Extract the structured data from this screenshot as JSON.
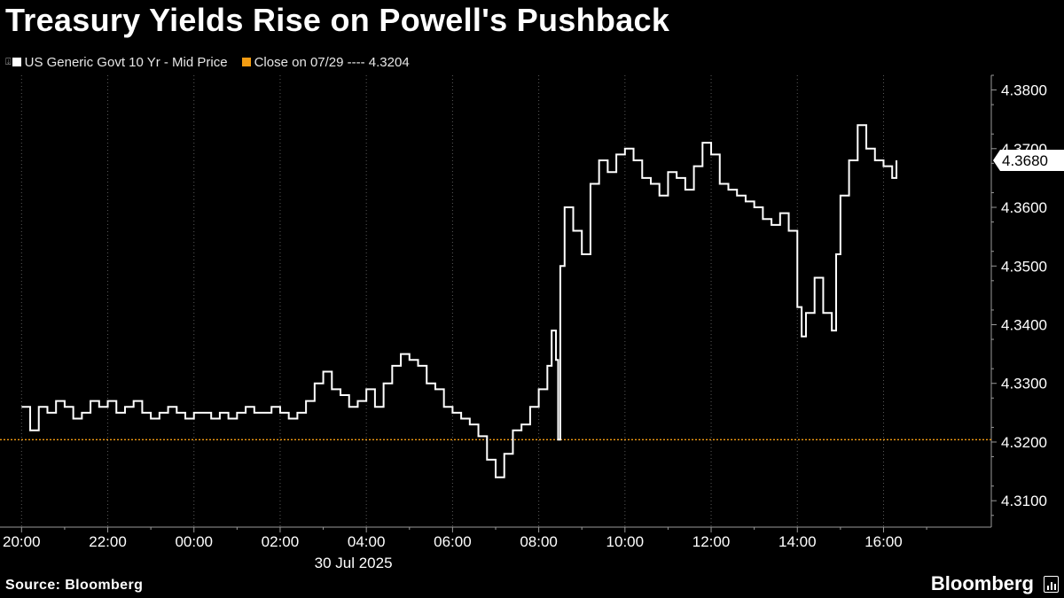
{
  "title": "Treasury Yields Rise on Powell's Pushback",
  "legend": {
    "series_label": "US Generic Govt 10 Yr - Mid Price",
    "close_label": "Close on 07/29 ---- 4.3204"
  },
  "footer": {
    "source": "Source: Bloomberg",
    "brand": "Bloomberg",
    "brand_icon": "bar-chart-icon"
  },
  "colors": {
    "background": "#000000",
    "series": "#ffffff",
    "close_line": "#f39c12",
    "axis": "#9a9a9a",
    "grid": "#5a5a5a"
  },
  "chart_data": {
    "type": "line",
    "title": "Treasury Yields Rise on Powell's Pushback",
    "xlabel": "30 Jul 2025",
    "ylabel": "",
    "x_unit": "hour relative to 00:00 on 30 Jul 2025",
    "xlim": [
      -4.5,
      18.5
    ],
    "ylim": [
      4.3055,
      4.3825
    ],
    "x_ticks": [
      -4,
      -2,
      0,
      2,
      4,
      6,
      8,
      10,
      12,
      14,
      16
    ],
    "x_tick_labels": [
      "20:00",
      "22:00",
      "00:00",
      "02:00",
      "04:00",
      "06:00",
      "08:00",
      "10:00",
      "12:00",
      "14:00",
      "16:00"
    ],
    "y_ticks": [
      4.31,
      4.32,
      4.33,
      4.34,
      4.35,
      4.36,
      4.37,
      4.38
    ],
    "y_tick_labels": [
      "4.3100",
      "4.3200",
      "4.3300",
      "4.3400",
      "4.3500",
      "4.3600",
      "4.3700",
      "4.3800"
    ],
    "grid": "vertical dotted at x ticks",
    "reference_line": {
      "name": "Close on 07/29",
      "value": 4.3204
    },
    "last_value_label": "4.3680",
    "series": [
      {
        "name": "US Generic Govt 10 Yr - Mid Price",
        "x": [
          -4.0,
          -3.8,
          -3.6,
          -3.4,
          -3.2,
          -3.0,
          -2.8,
          -2.6,
          -2.4,
          -2.2,
          -2.0,
          -1.8,
          -1.6,
          -1.4,
          -1.2,
          -1.0,
          -0.8,
          -0.6,
          -0.4,
          -0.2,
          0.0,
          0.2,
          0.4,
          0.6,
          0.8,
          1.0,
          1.2,
          1.4,
          1.6,
          1.8,
          2.0,
          2.2,
          2.4,
          2.6,
          2.8,
          3.0,
          3.2,
          3.4,
          3.6,
          3.8,
          4.0,
          4.2,
          4.4,
          4.6,
          4.8,
          5.0,
          5.2,
          5.4,
          5.6,
          5.8,
          6.0,
          6.2,
          6.4,
          6.6,
          6.8,
          7.0,
          7.2,
          7.4,
          7.6,
          7.8,
          8.0,
          8.2,
          8.3,
          8.4,
          8.45,
          8.5,
          8.6,
          8.8,
          9.0,
          9.2,
          9.4,
          9.6,
          9.8,
          10.0,
          10.2,
          10.4,
          10.6,
          10.8,
          11.0,
          11.2,
          11.4,
          11.6,
          11.8,
          12.0,
          12.2,
          12.4,
          12.6,
          12.8,
          13.0,
          13.2,
          13.4,
          13.6,
          13.8,
          14.0,
          14.1,
          14.2,
          14.4,
          14.6,
          14.8,
          14.9,
          15.0,
          15.2,
          15.4,
          15.6,
          15.8,
          16.0,
          16.2,
          16.3
        ],
        "values": [
          4.326,
          4.322,
          4.326,
          4.325,
          4.327,
          4.326,
          4.324,
          4.325,
          4.327,
          4.326,
          4.327,
          4.325,
          4.326,
          4.327,
          4.325,
          4.324,
          4.325,
          4.326,
          4.325,
          4.324,
          4.325,
          4.325,
          4.324,
          4.325,
          4.324,
          4.325,
          4.326,
          4.325,
          4.325,
          4.326,
          4.325,
          4.324,
          4.325,
          4.327,
          4.33,
          4.332,
          4.329,
          4.328,
          4.326,
          4.327,
          4.329,
          4.326,
          4.33,
          4.333,
          4.335,
          4.334,
          4.333,
          4.33,
          4.329,
          4.326,
          4.325,
          4.324,
          4.323,
          4.321,
          4.317,
          4.314,
          4.318,
          4.322,
          4.323,
          4.326,
          4.329,
          4.333,
          4.339,
          4.334,
          4.3204,
          4.35,
          4.36,
          4.356,
          4.352,
          4.364,
          4.368,
          4.366,
          4.369,
          4.37,
          4.368,
          4.365,
          4.364,
          4.362,
          4.366,
          4.365,
          4.363,
          4.367,
          4.371,
          4.369,
          4.364,
          4.363,
          4.362,
          4.361,
          4.36,
          4.358,
          4.357,
          4.359,
          4.356,
          4.343,
          4.338,
          4.342,
          4.348,
          4.342,
          4.339,
          4.352,
          4.362,
          4.368,
          4.374,
          4.37,
          4.368,
          4.367,
          4.365,
          4.368
        ]
      }
    ]
  }
}
